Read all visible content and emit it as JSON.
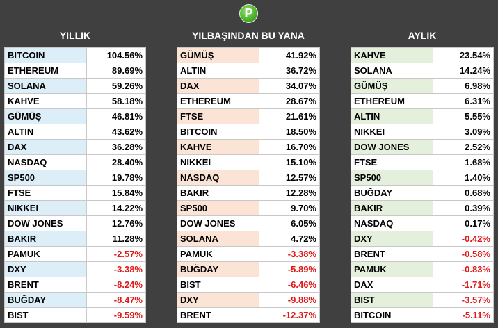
{
  "logo": {
    "letter": "P",
    "color": "#4fb52f"
  },
  "columns": [
    {
      "title": "YILLIK",
      "highlight": "#dceef8",
      "rows": [
        {
          "name": "BITCOIN",
          "value": "104.56%",
          "hl": true
        },
        {
          "name": "ETHEREUM",
          "value": "89.69%",
          "hl": false
        },
        {
          "name": "SOLANA",
          "value": "59.26%",
          "hl": true
        },
        {
          "name": "KAHVE",
          "value": "58.18%",
          "hl": false
        },
        {
          "name": "GÜMÜŞ",
          "value": "46.81%",
          "hl": true
        },
        {
          "name": "ALTIN",
          "value": "43.62%",
          "hl": false
        },
        {
          "name": "DAX",
          "value": "36.28%",
          "hl": true
        },
        {
          "name": "NASDAQ",
          "value": "28.40%",
          "hl": false
        },
        {
          "name": "SP500",
          "value": "19.78%",
          "hl": true
        },
        {
          "name": "FTSE",
          "value": "15.84%",
          "hl": false
        },
        {
          "name": "NIKKEI",
          "value": "14.22%",
          "hl": true
        },
        {
          "name": "DOW JONES",
          "value": "12.76%",
          "hl": false
        },
        {
          "name": "BAKIR",
          "value": "11.28%",
          "hl": true
        },
        {
          "name": "PAMUK",
          "value": "-2.57%",
          "hl": false
        },
        {
          "name": "DXY",
          "value": "-3.38%",
          "hl": true
        },
        {
          "name": "BRENT",
          "value": "-8.24%",
          "hl": false
        },
        {
          "name": "BUĞDAY",
          "value": "-8.47%",
          "hl": true
        },
        {
          "name": "BIST",
          "value": "-9.59%",
          "hl": false
        }
      ]
    },
    {
      "title": "YILBAŞINDAN BU YANA",
      "highlight": "#fbe3d6",
      "rows": [
        {
          "name": "GÜMÜŞ",
          "value": "41.92%",
          "hl": true
        },
        {
          "name": "ALTIN",
          "value": "36.72%",
          "hl": false
        },
        {
          "name": "DAX",
          "value": "34.07%",
          "hl": true
        },
        {
          "name": "ETHEREUM",
          "value": "28.67%",
          "hl": false
        },
        {
          "name": "FTSE",
          "value": "21.61%",
          "hl": true
        },
        {
          "name": "BITCOIN",
          "value": "18.50%",
          "hl": false
        },
        {
          "name": "KAHVE",
          "value": "16.70%",
          "hl": true
        },
        {
          "name": "NIKKEI",
          "value": "15.10%",
          "hl": false
        },
        {
          "name": "NASDAQ",
          "value": "12.57%",
          "hl": true
        },
        {
          "name": "BAKIR",
          "value": "12.28%",
          "hl": false
        },
        {
          "name": "SP500",
          "value": "9.70%",
          "hl": true
        },
        {
          "name": "DOW JONES",
          "value": "6.05%",
          "hl": false
        },
        {
          "name": "SOLANA",
          "value": "4.72%",
          "hl": true
        },
        {
          "name": "PAMUK",
          "value": "-3.38%",
          "hl": false
        },
        {
          "name": "BUĞDAY",
          "value": "-5.89%",
          "hl": true
        },
        {
          "name": "BIST",
          "value": "-6.46%",
          "hl": false
        },
        {
          "name": "DXY",
          "value": "-9.88%",
          "hl": true
        },
        {
          "name": "BRENT",
          "value": "-12.37%",
          "hl": false
        }
      ]
    },
    {
      "title": "AYLIK",
      "highlight": "#e4efdc",
      "rows": [
        {
          "name": "KAHVE",
          "value": "23.54%",
          "hl": true
        },
        {
          "name": "SOLANA",
          "value": "14.24%",
          "hl": false
        },
        {
          "name": "GÜMÜŞ",
          "value": "6.98%",
          "hl": true
        },
        {
          "name": "ETHEREUM",
          "value": "6.31%",
          "hl": false
        },
        {
          "name": "ALTIN",
          "value": "5.55%",
          "hl": true
        },
        {
          "name": "NIKKEI",
          "value": "3.09%",
          "hl": false
        },
        {
          "name": "DOW JONES",
          "value": "2.52%",
          "hl": true
        },
        {
          "name": "FTSE",
          "value": "1.68%",
          "hl": false
        },
        {
          "name": "SP500",
          "value": "1.40%",
          "hl": true
        },
        {
          "name": "BUĞDAY",
          "value": "0.68%",
          "hl": false
        },
        {
          "name": "BAKIR",
          "value": "0.39%",
          "hl": true
        },
        {
          "name": "NASDAQ",
          "value": "0.17%",
          "hl": false
        },
        {
          "name": "DXY",
          "value": "-0.42%",
          "hl": true
        },
        {
          "name": "BRENT",
          "value": "-0.58%",
          "hl": false
        },
        {
          "name": "PAMUK",
          "value": "-0.83%",
          "hl": true
        },
        {
          "name": "DAX",
          "value": "-1.71%",
          "hl": false
        },
        {
          "name": "BIST",
          "value": "-3.57%",
          "hl": true
        },
        {
          "name": "BITCOIN",
          "value": "-5.11%",
          "hl": false
        }
      ]
    }
  ]
}
